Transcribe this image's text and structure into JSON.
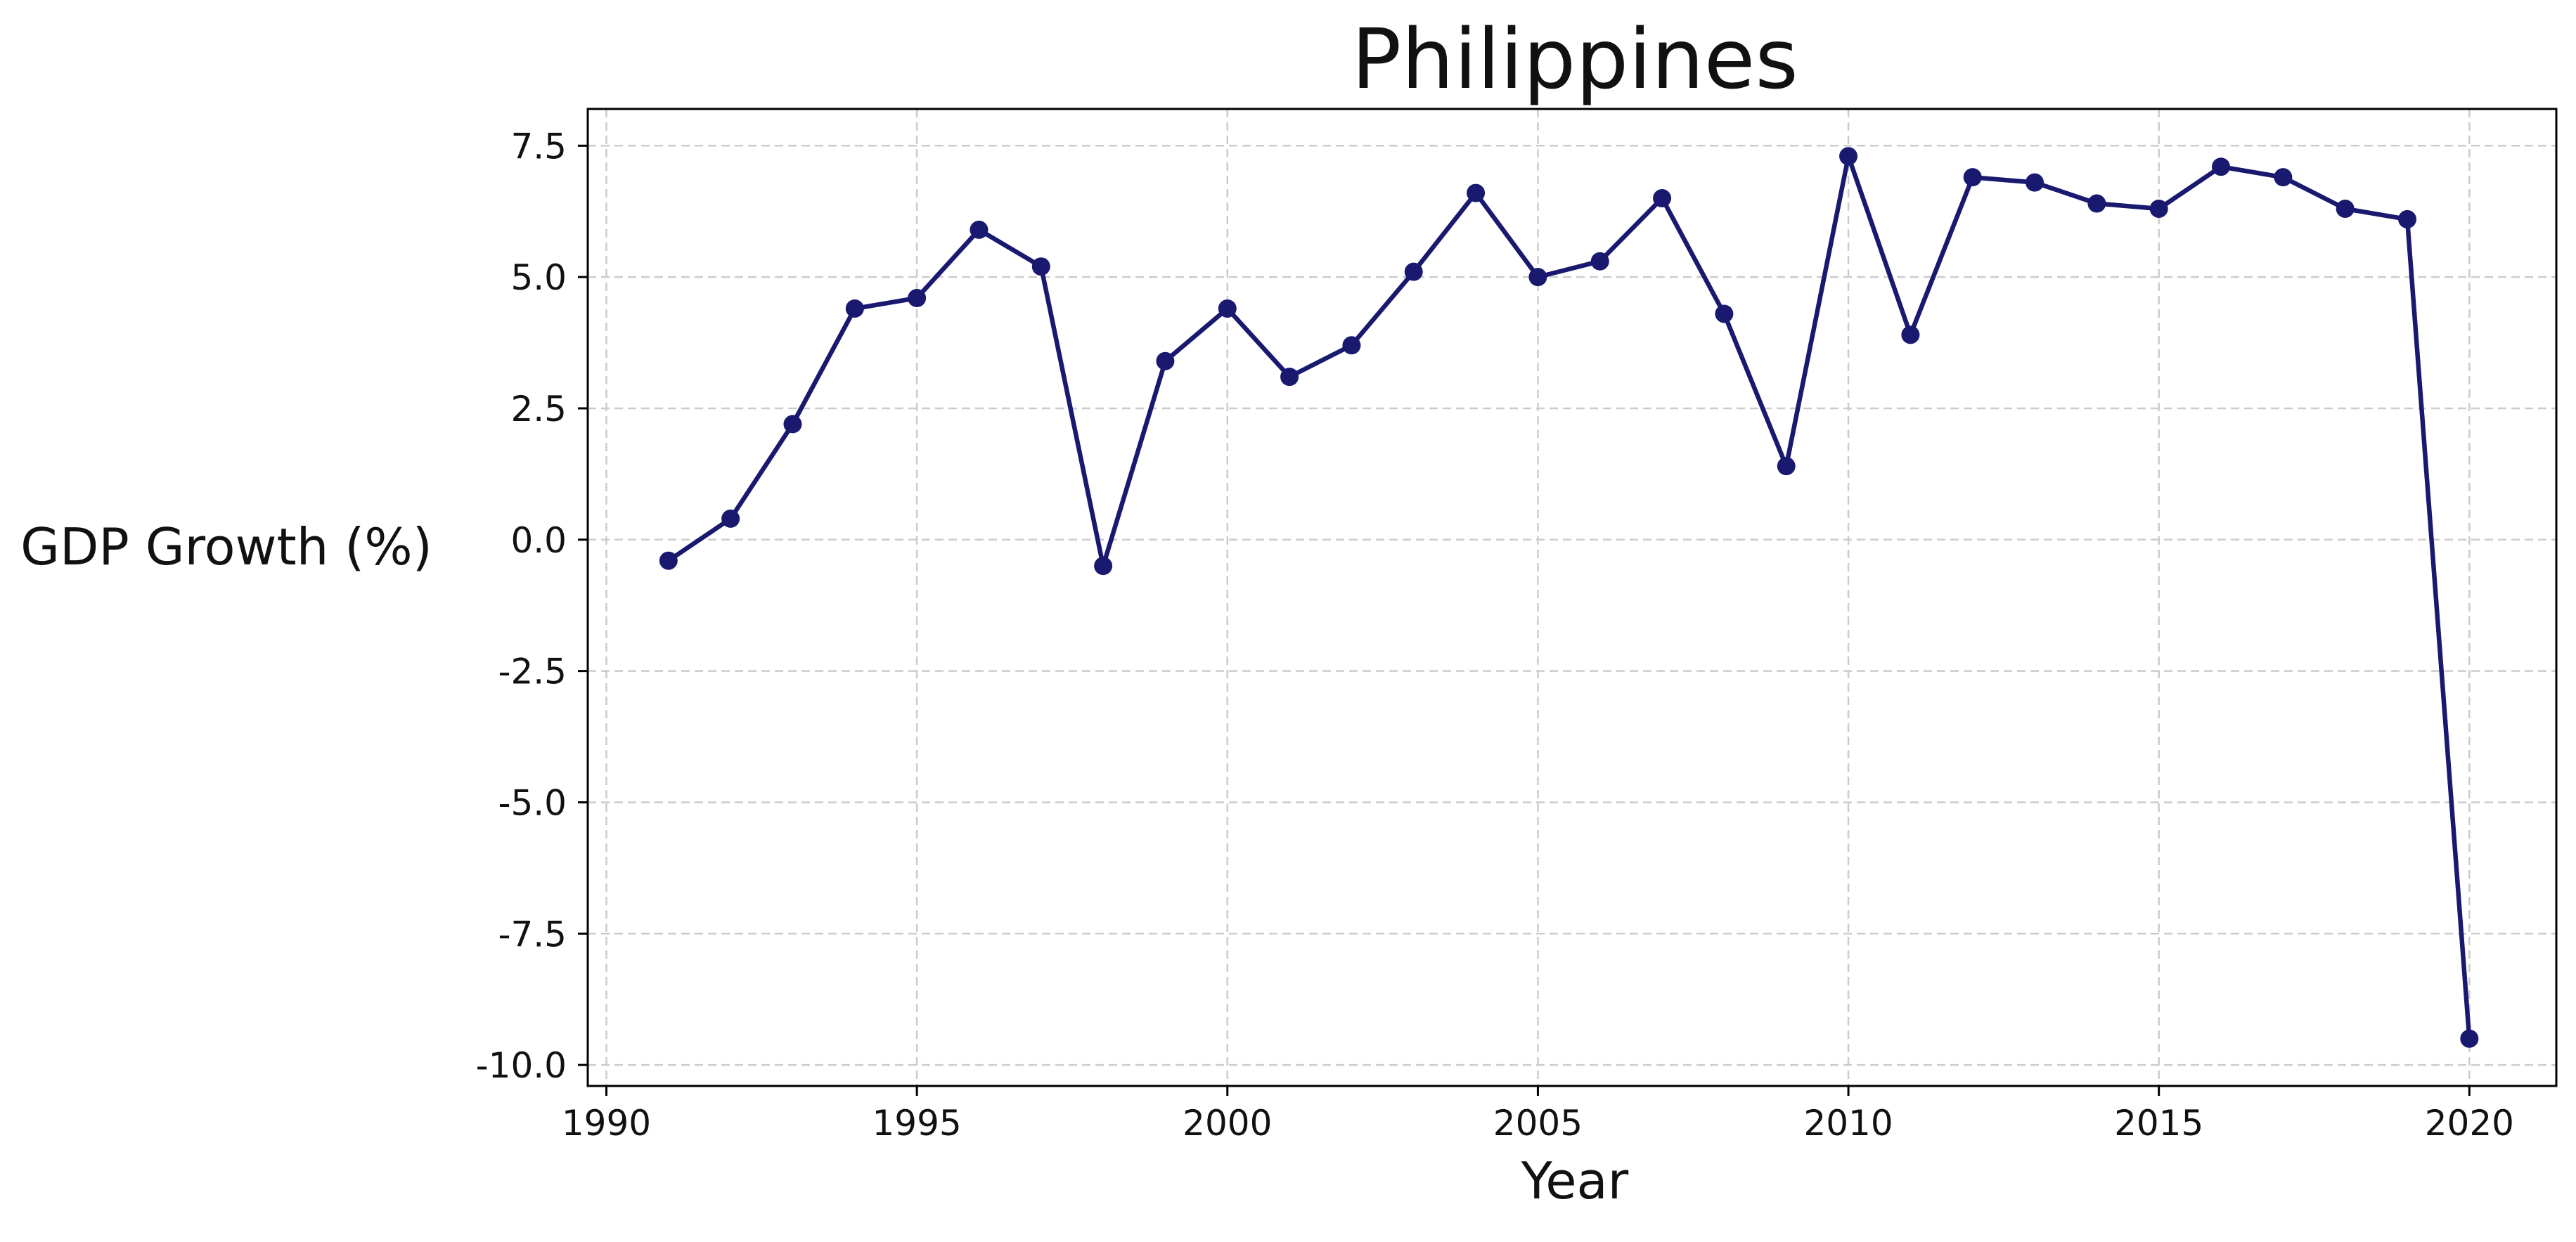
{
  "chart_data": {
    "type": "line",
    "title": "Philippines",
    "xlabel": "Year",
    "ylabel": "GDP Growth (%)",
    "xlim": [
      1989.7,
      2021.4
    ],
    "ylim": [
      -10.4,
      8.2
    ],
    "grid": true,
    "line_color": "#191970",
    "grid_color": "#cccccc",
    "xticks": [
      {
        "value": 1990,
        "label": "1990"
      },
      {
        "value": 1995,
        "label": "1995"
      },
      {
        "value": 2000,
        "label": "2000"
      },
      {
        "value": 2005,
        "label": "2005"
      },
      {
        "value": 2010,
        "label": "2010"
      },
      {
        "value": 2015,
        "label": "2015"
      },
      {
        "value": 2020,
        "label": "2020"
      }
    ],
    "yticks": [
      {
        "value": 7.5,
        "label": "7.5"
      },
      {
        "value": 5.0,
        "label": "5.0"
      },
      {
        "value": 2.5,
        "label": "2.5"
      },
      {
        "value": 0.0,
        "label": "0.0"
      },
      {
        "value": -2.5,
        "label": "-2.5"
      },
      {
        "value": -5.0,
        "label": "-5.0"
      },
      {
        "value": -7.5,
        "label": "-7.5"
      },
      {
        "value": -10.0,
        "label": "-10.0"
      }
    ],
    "x": [
      1991,
      1992,
      1993,
      1994,
      1995,
      1996,
      1997,
      1998,
      1999,
      2000,
      2001,
      2002,
      2003,
      2004,
      2005,
      2006,
      2007,
      2008,
      2009,
      2010,
      2011,
      2012,
      2013,
      2014,
      2015,
      2016,
      2017,
      2018,
      2019,
      2020
    ],
    "series": [
      {
        "values": [
          -0.4,
          0.4,
          2.2,
          4.4,
          4.6,
          5.9,
          5.2,
          -0.5,
          3.4,
          4.4,
          3.1,
          3.7,
          5.1,
          6.6,
          5.0,
          5.3,
          6.5,
          4.3,
          1.4,
          7.3,
          3.9,
          6.9,
          6.8,
          6.4,
          6.3,
          7.1,
          6.9,
          6.3,
          6.1,
          -9.5
        ]
      }
    ]
  }
}
